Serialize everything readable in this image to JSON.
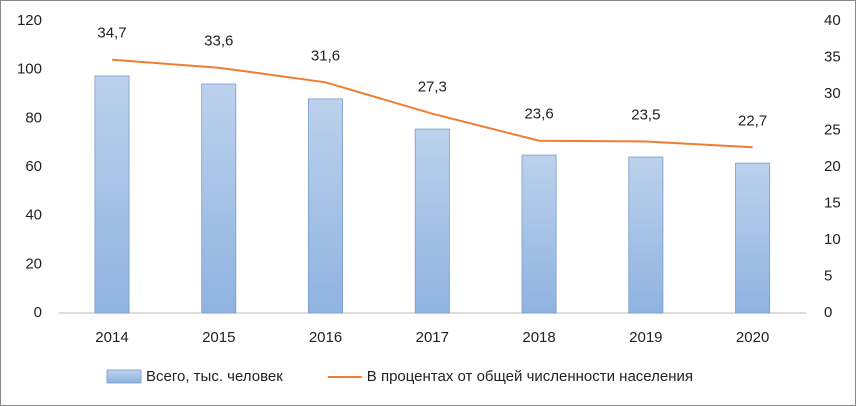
{
  "chart_data": {
    "type": "bar",
    "categories": [
      "2014",
      "2015",
      "2016",
      "2017",
      "2018",
      "2019",
      "2020"
    ],
    "series": [
      {
        "name": "Всего, тыс. человек",
        "type": "bar",
        "color": "#8fb3e0",
        "values": [
          97.4,
          94.1,
          88,
          75.6,
          64.9,
          64.1,
          61.6
        ]
      },
      {
        "name": "В процентах от общей численности населения",
        "type": "line",
        "axis": "y2",
        "color": "#ed7d31",
        "values": [
          34.7,
          33.6,
          31.6,
          27.3,
          23.6,
          23.5,
          22.7
        ],
        "value_labels": [
          "34,7",
          "33,6",
          "31,6",
          "27,3",
          "23,6",
          "23,5",
          "22,7"
        ]
      }
    ],
    "ylim": [
      0,
      120
    ],
    "yticks": [
      0,
      20,
      40,
      60,
      80,
      100,
      120
    ],
    "y2lim": [
      0,
      40
    ],
    "y2ticks": [
      0,
      5,
      10,
      15,
      20,
      25,
      30,
      35,
      40
    ],
    "grid": false,
    "legend": "bottom"
  }
}
